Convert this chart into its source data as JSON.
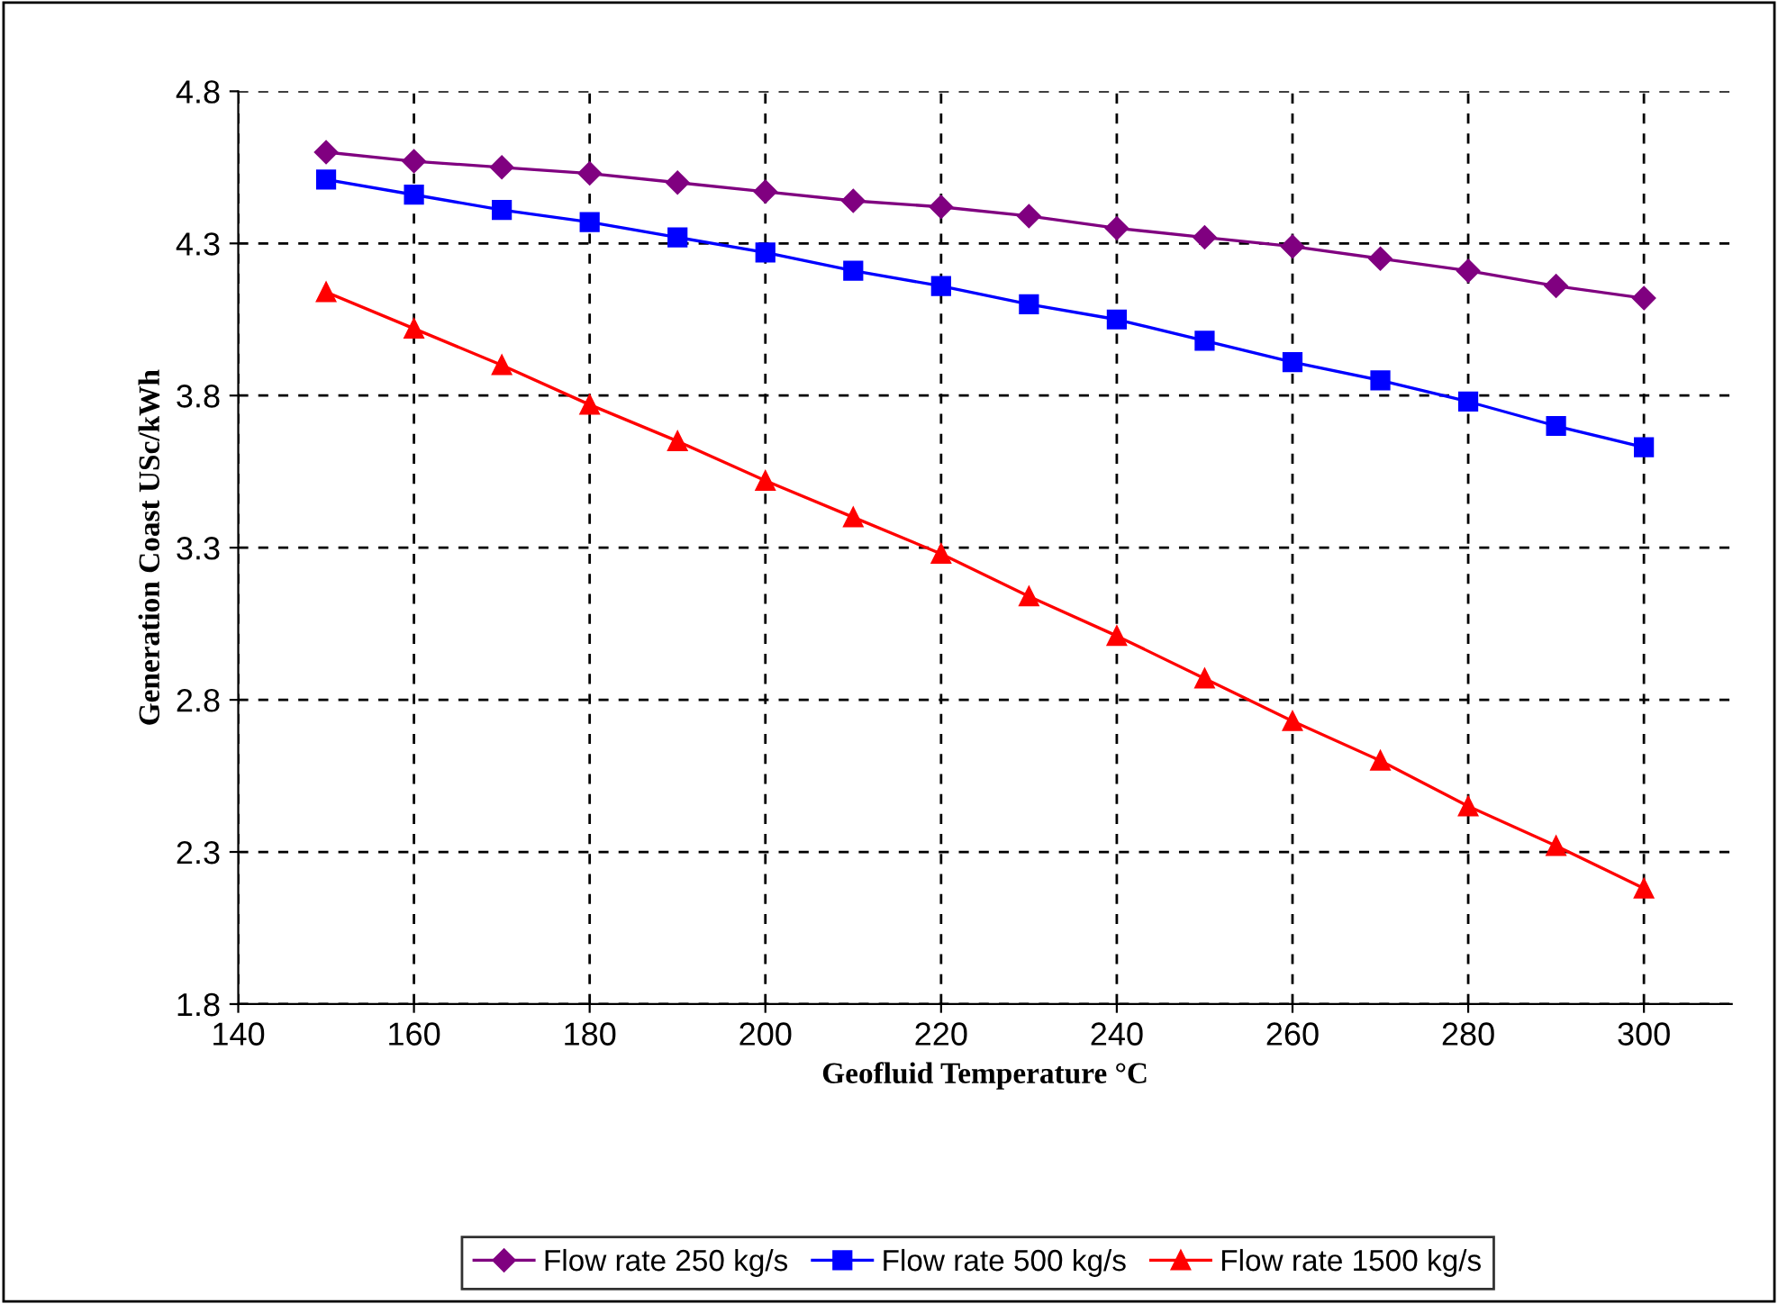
{
  "chart_data": {
    "type": "line",
    "xlabel": "Geofluid Temperature °C",
    "ylabel": "Generation Coast USc/kWh",
    "x": [
      150,
      160,
      170,
      180,
      190,
      200,
      210,
      220,
      230,
      240,
      250,
      260,
      270,
      280,
      290,
      300
    ],
    "series": [
      {
        "name": "Flow rate 250 kg/s",
        "color": "#800080",
        "marker": "diamond",
        "values": [
          4.6,
          4.57,
          4.55,
          4.53,
          4.5,
          4.47,
          4.44,
          4.42,
          4.39,
          4.35,
          4.32,
          4.29,
          4.25,
          4.21,
          4.16,
          4.12
        ]
      },
      {
        "name": "Flow rate 500 kg/s",
        "color": "#0000ff",
        "marker": "square",
        "values": [
          4.51,
          4.46,
          4.41,
          4.37,
          4.32,
          4.27,
          4.21,
          4.16,
          4.1,
          4.05,
          3.98,
          3.91,
          3.85,
          3.78,
          3.7,
          3.63
        ]
      },
      {
        "name": "Flow rate 1500 kg/s",
        "color": "#ff0000",
        "marker": "triangle",
        "values": [
          4.14,
          4.02,
          3.9,
          3.77,
          3.65,
          3.52,
          3.4,
          3.28,
          3.14,
          3.01,
          2.87,
          2.73,
          2.6,
          2.45,
          2.32,
          2.18
        ]
      }
    ],
    "xlim": [
      140,
      310
    ],
    "xticks": [
      140,
      160,
      180,
      200,
      220,
      240,
      260,
      280,
      300
    ],
    "ylim": [
      1.8,
      4.8
    ],
    "yticks": [
      1.8,
      2.3,
      2.8,
      3.3,
      3.8,
      4.3,
      4.8
    ],
    "grid": true,
    "legend": "bottom",
    "line_style": "solid"
  }
}
